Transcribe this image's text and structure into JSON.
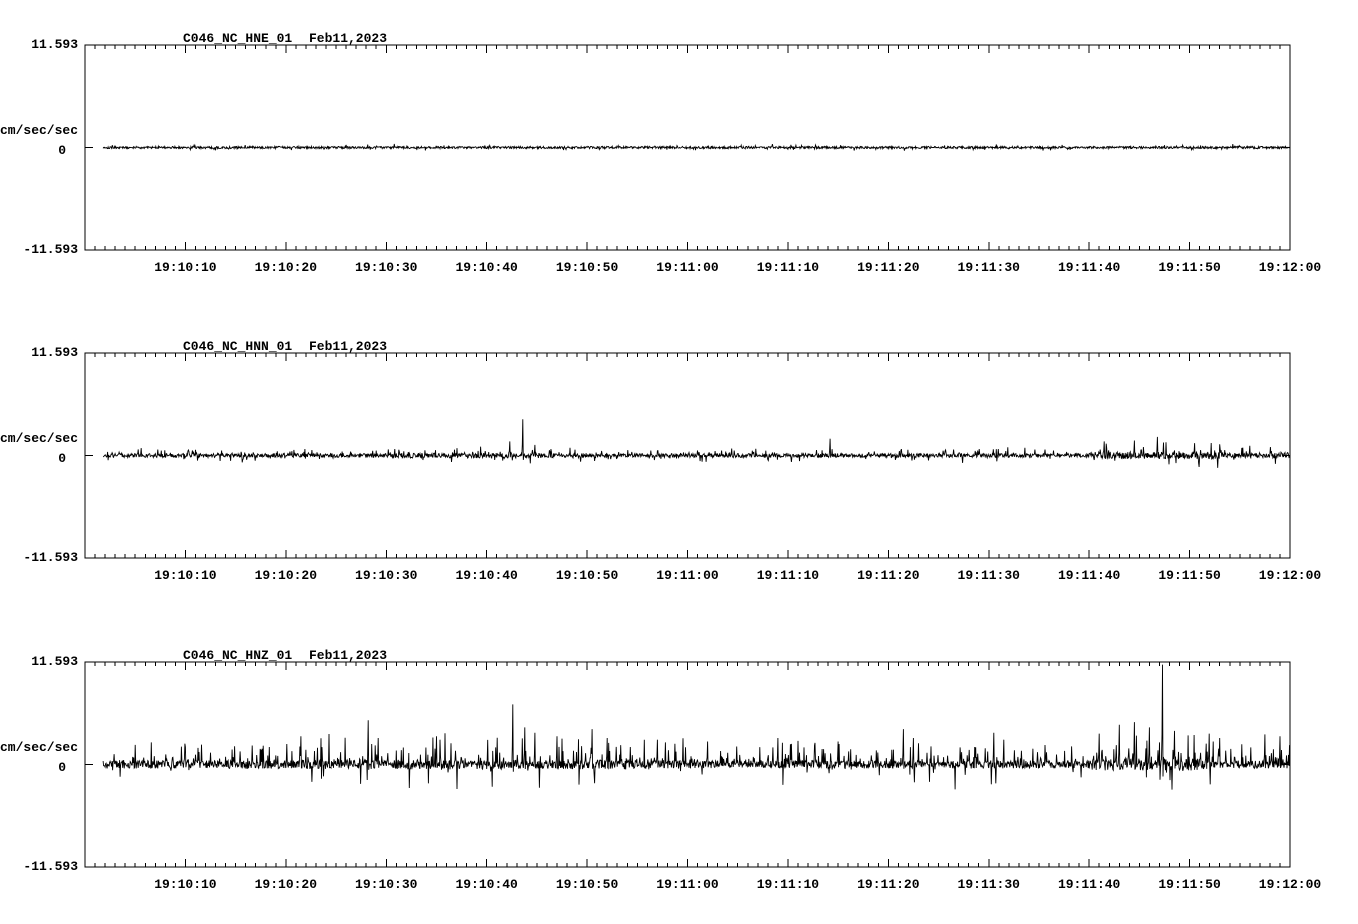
{
  "page": {
    "background": "#ffffff",
    "trace_color": "#000000"
  },
  "chart_data": [
    {
      "type": "line",
      "title": "C046_NC_HNE_01",
      "date": "Feb11,2023",
      "ylabel": "cm/sec/sec",
      "y_tick_labels": [
        "11.593",
        "0",
        "-11.593"
      ],
      "axis": {
        "ylim": 11.593,
        "t_start": 0,
        "t_end": 120,
        "minor_tick_sec": 1,
        "major_tick_sec": 10,
        "x_ticks": [
          {
            "t": 10,
            "label": "19:10:10"
          },
          {
            "t": 20,
            "label": "19:10:20"
          },
          {
            "t": 30,
            "label": "19:10:30"
          },
          {
            "t": 40,
            "label": "19:10:40"
          },
          {
            "t": 50,
            "label": "19:10:50"
          },
          {
            "t": 60,
            "label": "19:11:00"
          },
          {
            "t": 70,
            "label": "19:11:10"
          },
          {
            "t": 80,
            "label": "19:11:20"
          },
          {
            "t": 90,
            "label": "19:11:30"
          },
          {
            "t": 100,
            "label": "19:11:40"
          },
          {
            "t": 110,
            "label": "19:11:50"
          },
          {
            "t": 120,
            "label": "19:12:00"
          }
        ]
      },
      "waveform": {
        "seed": 101,
        "trace_start_sec": 1.8,
        "sample_dt_sec": 0.05,
        "noise_amp": 0.13,
        "spike_rate": 0.06,
        "spike_min": 0.08,
        "spike_max": 0.3,
        "positive_bias": 0.5,
        "tail_power": 1.6,
        "envelope": [],
        "spikes": []
      }
    },
    {
      "type": "line",
      "title": "C046_NC_HNN_01",
      "date": "Feb11,2023",
      "ylabel": "cm/sec/sec",
      "y_tick_labels": [
        "11.593",
        "0",
        "-11.593"
      ],
      "axis": {
        "ylim": 11.593,
        "t_start": 0,
        "t_end": 120,
        "minor_tick_sec": 1,
        "major_tick_sec": 10,
        "x_ticks": [
          {
            "t": 10,
            "label": "19:10:10"
          },
          {
            "t": 20,
            "label": "19:10:20"
          },
          {
            "t": 30,
            "label": "19:10:30"
          },
          {
            "t": 40,
            "label": "19:10:40"
          },
          {
            "t": 50,
            "label": "19:10:50"
          },
          {
            "t": 60,
            "label": "19:11:00"
          },
          {
            "t": 70,
            "label": "19:11:10"
          },
          {
            "t": 80,
            "label": "19:11:20"
          },
          {
            "t": 90,
            "label": "19:11:30"
          },
          {
            "t": 100,
            "label": "19:11:40"
          },
          {
            "t": 110,
            "label": "19:11:50"
          },
          {
            "t": 120,
            "label": "19:12:00"
          }
        ]
      },
      "waveform": {
        "seed": 202,
        "trace_start_sec": 1.8,
        "sample_dt_sec": 0.05,
        "noise_amp": 0.22,
        "spike_rate": 0.14,
        "spike_min": 0.12,
        "spike_max": 0.75,
        "positive_bias": 0.72,
        "tail_power": 1.8,
        "envelope": [
          {
            "t0": 30,
            "t1": 50,
            "gain": 1.3
          },
          {
            "t0": 100,
            "t1": 113,
            "gain": 1.8
          },
          {
            "t0": 113,
            "t1": 120,
            "gain": 1.4
          }
        ],
        "spikes": [
          {
            "t": 42.3,
            "a": 1.6
          },
          {
            "t": 43.6,
            "a": 4.1
          },
          {
            "t": 44.8,
            "a": 1.2
          },
          {
            "t": 74.2,
            "a": 1.9
          },
          {
            "t": 101.5,
            "a": 1.6
          },
          {
            "t": 104.5,
            "a": 1.7
          },
          {
            "t": 106.8,
            "a": 2.1
          },
          {
            "t": 110.5,
            "a": 1.4
          },
          {
            "t": 116.0,
            "a": 1.1
          }
        ]
      }
    },
    {
      "type": "line",
      "title": "C046_NC_HNZ_01",
      "date": "Feb11,2023",
      "ylabel": "cm/sec/sec",
      "y_tick_labels": [
        "11.593",
        "0",
        "-11.593"
      ],
      "axis": {
        "ylim": 11.593,
        "t_start": 0,
        "t_end": 120,
        "minor_tick_sec": 1,
        "major_tick_sec": 10,
        "x_ticks": [
          {
            "t": 10,
            "label": "19:10:10"
          },
          {
            "t": 20,
            "label": "19:10:20"
          },
          {
            "t": 30,
            "label": "19:10:30"
          },
          {
            "t": 40,
            "label": "19:10:40"
          },
          {
            "t": 50,
            "label": "19:10:50"
          },
          {
            "t": 60,
            "label": "19:11:00"
          },
          {
            "t": 70,
            "label": "19:11:10"
          },
          {
            "t": 80,
            "label": "19:11:20"
          },
          {
            "t": 90,
            "label": "19:11:30"
          },
          {
            "t": 100,
            "label": "19:11:40"
          },
          {
            "t": 110,
            "label": "19:11:50"
          },
          {
            "t": 120,
            "label": "19:12:00"
          }
        ]
      },
      "waveform": {
        "seed": 303,
        "trace_start_sec": 1.8,
        "sample_dt_sec": 0.05,
        "noise_amp": 0.45,
        "spike_rate": 0.22,
        "spike_min": 0.3,
        "spike_max": 2.6,
        "positive_bias": 0.85,
        "tail_power": 2.5,
        "envelope": [
          {
            "t0": 20,
            "t1": 55,
            "gain": 1.2
          },
          {
            "t0": 100,
            "t1": 112,
            "gain": 1.5
          }
        ],
        "spikes": [
          {
            "t": 21.5,
            "a": 3.2
          },
          {
            "t": 28.2,
            "a": 5.0
          },
          {
            "t": 29.2,
            "a": 3.0
          },
          {
            "t": 35.0,
            "a": 3.2
          },
          {
            "t": 42.6,
            "a": 6.8
          },
          {
            "t": 43.8,
            "a": 4.2
          },
          {
            "t": 44.8,
            "a": 3.6
          },
          {
            "t": 47.0,
            "a": 3.2
          },
          {
            "t": 50.5,
            "a": 4.0
          },
          {
            "t": 52.0,
            "a": 3.0
          },
          {
            "t": 57.0,
            "a": 2.8
          },
          {
            "t": 62.0,
            "a": 2.6
          },
          {
            "t": 69.0,
            "a": 3.0
          },
          {
            "t": 75.0,
            "a": 2.6
          },
          {
            "t": 81.5,
            "a": 4.0
          },
          {
            "t": 82.5,
            "a": 3.0
          },
          {
            "t": 90.5,
            "a": 3.6
          },
          {
            "t": 91.5,
            "a": 2.8
          },
          {
            "t": 101.0,
            "a": 3.5
          },
          {
            "t": 103.0,
            "a": 4.5
          },
          {
            "t": 104.5,
            "a": 4.8
          },
          {
            "t": 106.0,
            "a": 4.2
          },
          {
            "t": 107.3,
            "a": 11.3
          },
          {
            "t": 108.5,
            "a": 3.8
          },
          {
            "t": 113.0,
            "a": 3.0
          },
          {
            "t": 117.5,
            "a": 3.4
          },
          {
            "t": 119.0,
            "a": 3.2
          }
        ]
      }
    }
  ]
}
